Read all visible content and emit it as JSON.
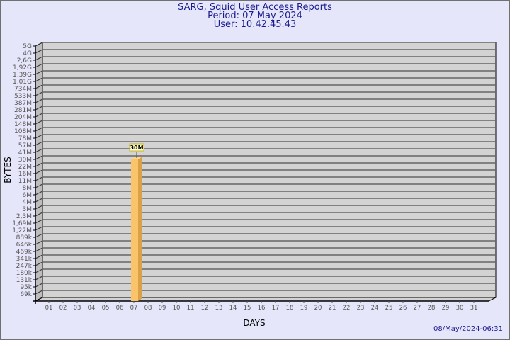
{
  "header": {
    "title": "SARG, Squid User Access Reports",
    "period": "Period: 07 May 2024",
    "user": "User: 10.42.45.43"
  },
  "footer": {
    "timestamp": "08/May/2024-06:31"
  },
  "chart_data": {
    "type": "bar",
    "xlabel": "DAYS",
    "ylabel": "BYTES",
    "y_scale": "log-like (labeled ticks)",
    "y_ticks": [
      "5G",
      "4G",
      "2,6G",
      "1,92G",
      "1,39G",
      "1,01G",
      "734M",
      "533M",
      "387M",
      "281M",
      "204M",
      "148M",
      "108M",
      "78M",
      "57M",
      "41M",
      "30M",
      "22M",
      "16M",
      "11M",
      "8M",
      "6M",
      "4M",
      "3M",
      "2,3M",
      "1,69M",
      "1,22M",
      "889k",
      "646k",
      "469k",
      "341k",
      "247k",
      "180k",
      "131k",
      "95k",
      "69k"
    ],
    "categories": [
      "01",
      "02",
      "03",
      "04",
      "05",
      "06",
      "07",
      "08",
      "09",
      "10",
      "11",
      "12",
      "13",
      "14",
      "15",
      "16",
      "17",
      "18",
      "19",
      "20",
      "21",
      "22",
      "23",
      "24",
      "25",
      "26",
      "27",
      "28",
      "29",
      "30",
      "31"
    ],
    "series": [
      {
        "values": {
          "07": "30M"
        }
      }
    ],
    "data_labels": [
      {
        "category": "07",
        "text": "30M"
      }
    ],
    "grid": true,
    "colors": {
      "bar_front": "#fcc46a",
      "bar_side": "#d9a148",
      "wall": "#d3d3d3",
      "side_wall": "#bdbdbd",
      "title": "#1b1b8f",
      "background": "#e6e6fa"
    }
  }
}
